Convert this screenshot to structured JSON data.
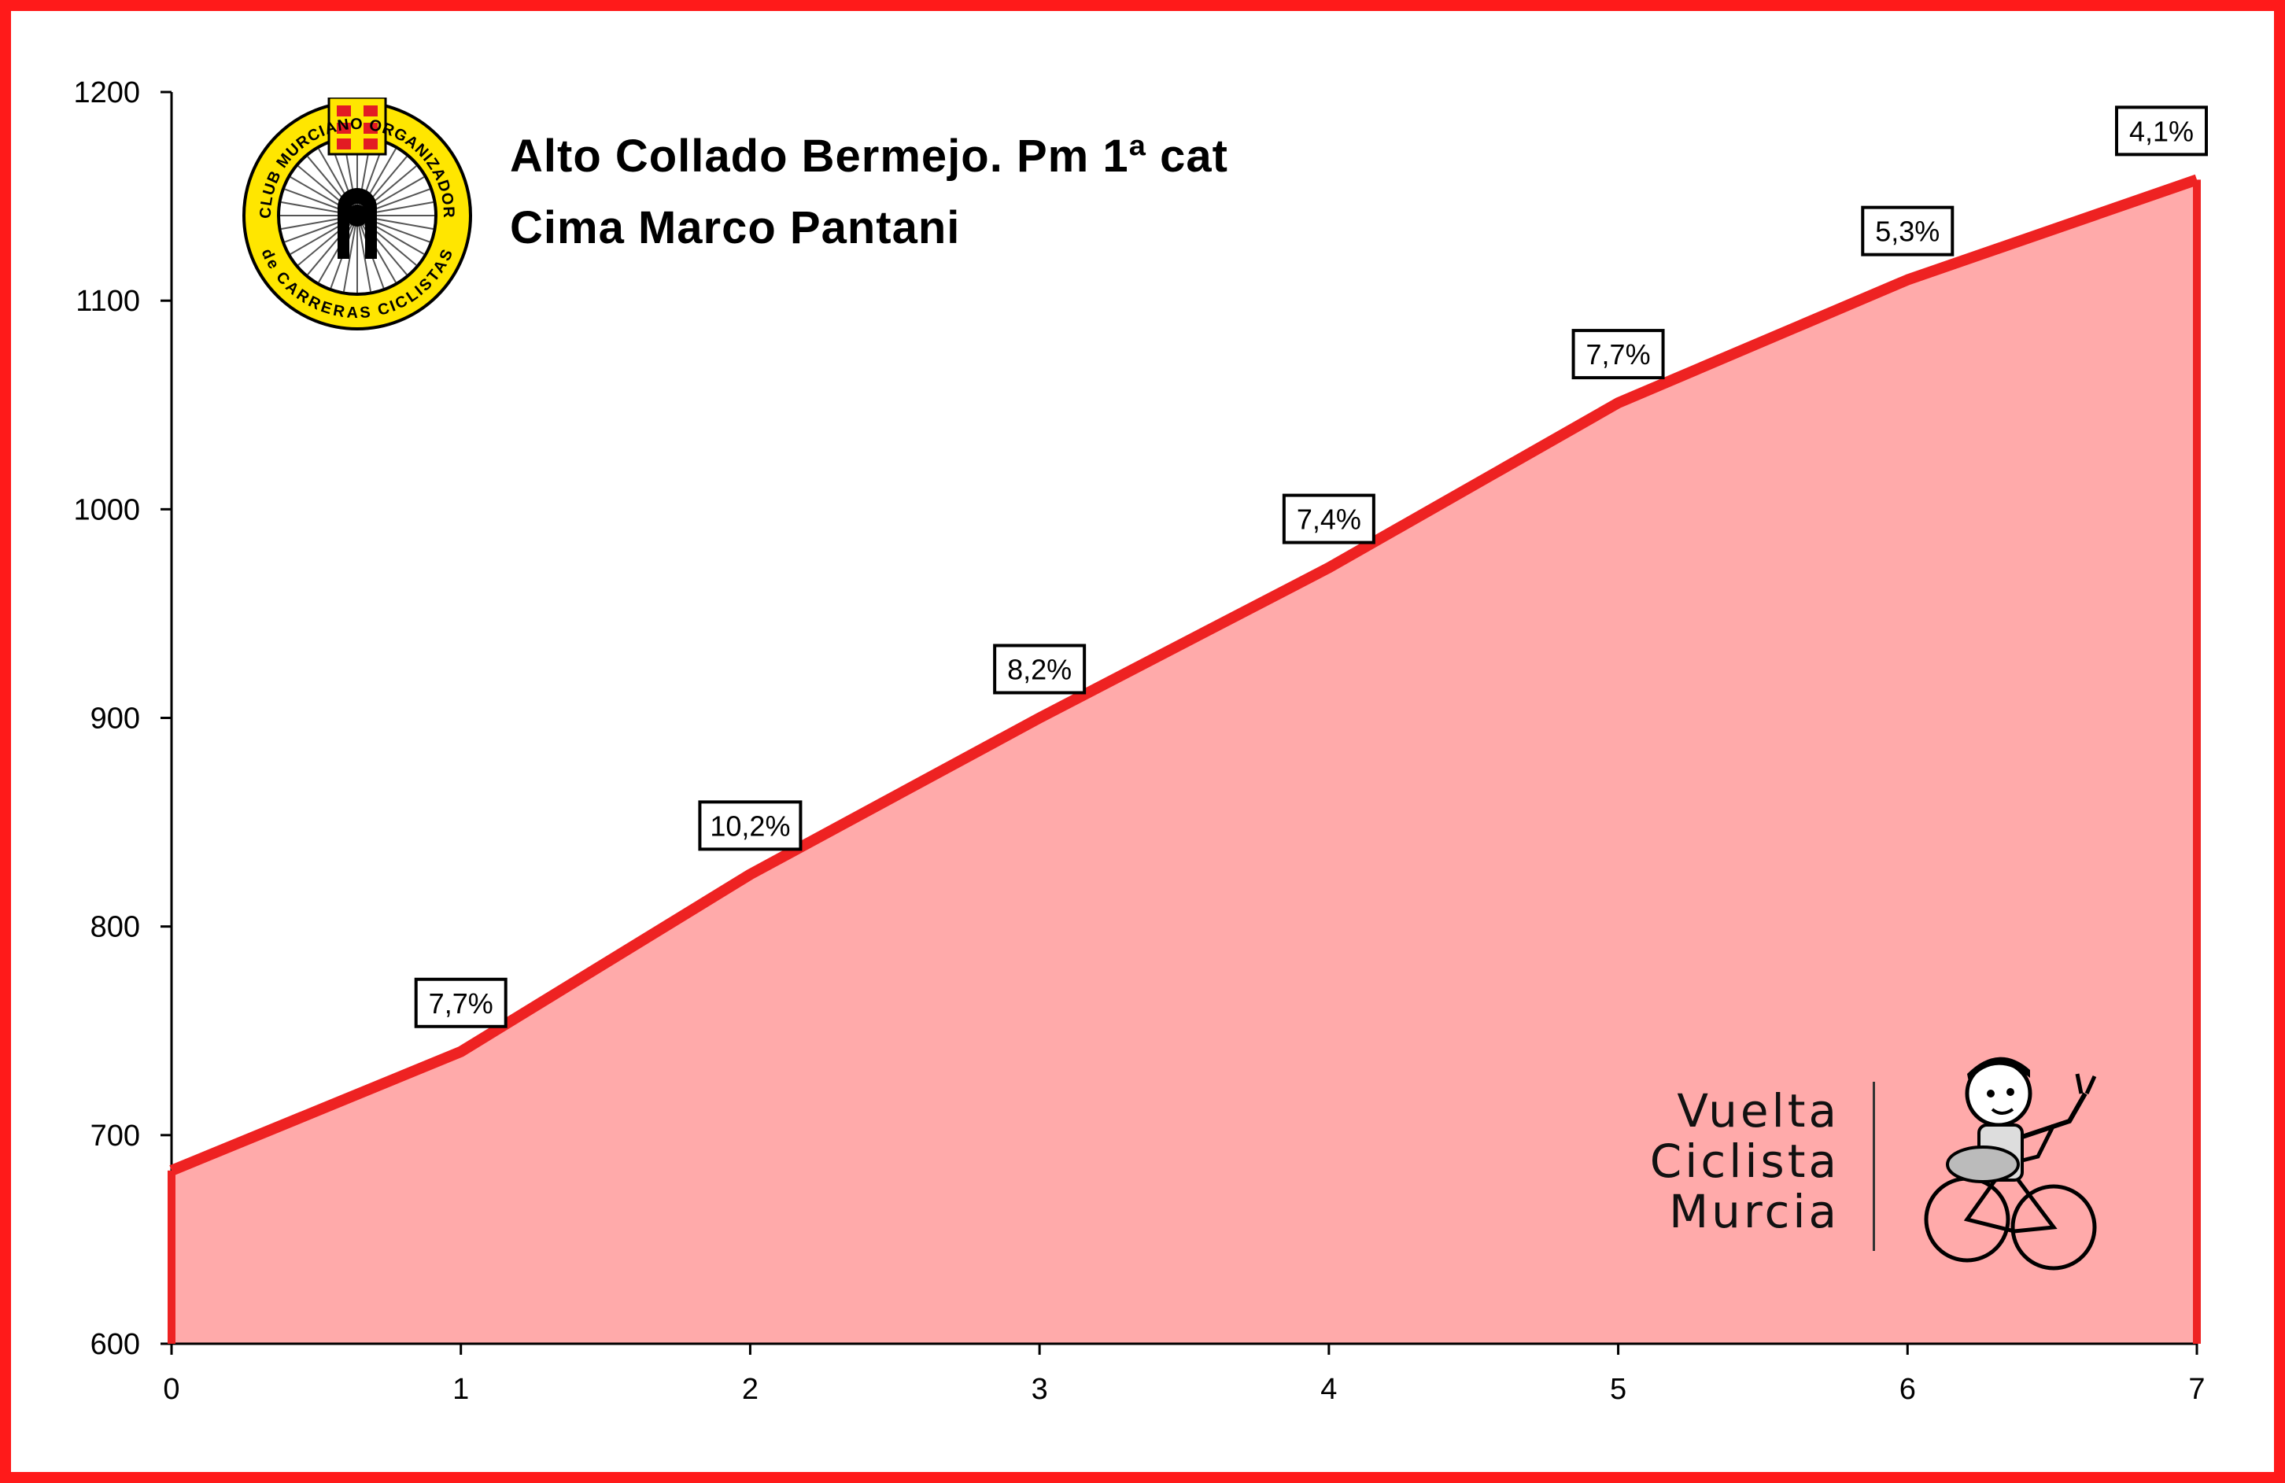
{
  "header": {
    "title_line1": "Alto Collado Bermejo. Pm 1ª cat",
    "title_line2": "Cima Marco Pantani"
  },
  "branding": {
    "club_logo_text_top": "CLUB MURCIANO ORGANIZADOR",
    "club_logo_text_bottom": "de CARRERAS CICLISTAS",
    "vuelta_line1": "Vuelta",
    "vuelta_line2": "Ciclista",
    "vuelta_line3": "Murcia",
    "mascot_icon": "cyclist-boy-mascot"
  },
  "colors": {
    "frame": "#ff1a1a",
    "line": "#ee2222",
    "fill": "#ffaaaa",
    "logo_yellow": "#ffe600",
    "logo_red": "#e31b23"
  },
  "chart_data": {
    "type": "area",
    "x": [
      0,
      1,
      2,
      3,
      4,
      5,
      6,
      7
    ],
    "y": [
      683,
      740,
      825,
      900,
      972,
      1051,
      1110,
      1158
    ],
    "segment_grades": [
      "7,7%",
      "10,2%",
      "8,2%",
      "7,4%",
      "7,7%",
      "5,3%",
      "4,1%"
    ],
    "x_ticks": [
      "0",
      "1",
      "2",
      "3",
      "4",
      "5",
      "6",
      "7"
    ],
    "y_ticks": [
      "600",
      "700",
      "800",
      "900",
      "1000",
      "1100",
      "1200"
    ],
    "xlim": [
      0,
      7
    ],
    "ylim": [
      600,
      1200
    ],
    "grid": false,
    "legend": "none"
  }
}
